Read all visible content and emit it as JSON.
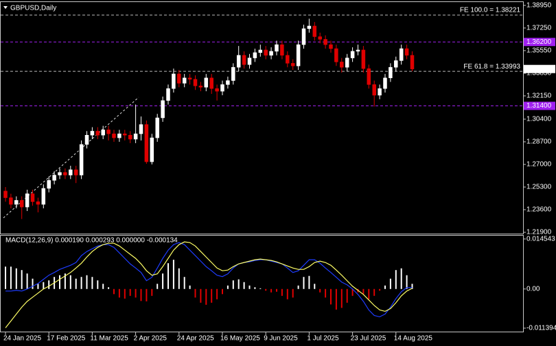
{
  "chart_data": [
    {
      "type": "candlestick",
      "title": "GBPUSD,Daily",
      "categories": [
        "24 Jan 2025",
        null,
        null,
        null,
        null,
        null,
        null,
        null,
        "17 Feb 2025",
        null,
        null,
        null,
        null,
        null,
        null,
        null,
        "11 Mar 2025",
        null,
        null,
        null,
        null,
        null,
        null,
        null,
        "2 Apr 2025",
        null,
        null,
        null,
        null,
        null,
        null,
        null,
        "24 Apr 2025",
        null,
        null,
        null,
        null,
        null,
        null,
        null,
        "16 May 2025",
        null,
        null,
        null,
        null,
        null,
        null,
        null,
        "9 Jun 2025",
        null,
        null,
        null,
        null,
        null,
        null,
        null,
        "1 Jul 2025",
        null,
        null,
        null,
        null,
        null,
        null,
        null,
        "23 Jul 2025",
        null,
        null,
        null,
        null,
        null,
        null,
        null,
        "14 Aug 2025",
        null,
        null,
        null
      ],
      "open": [
        1.25,
        1.245,
        1.24,
        1.243,
        1.238,
        1.248,
        1.242,
        1.24,
        1.252,
        1.258,
        1.262,
        1.264,
        1.262,
        1.266,
        1.262,
        1.285,
        1.292,
        1.295,
        1.292,
        1.296,
        1.293,
        1.29,
        1.293,
        1.292,
        1.289,
        1.293,
        1.3,
        1.272,
        1.29,
        1.305,
        1.318,
        1.327,
        1.338,
        1.331,
        1.335,
        1.334,
        1.329,
        1.328,
        1.335,
        1.327,
        1.325,
        1.33,
        1.333,
        1.343,
        1.352,
        1.345,
        1.35,
        1.354,
        1.356,
        1.352,
        1.355,
        1.36,
        1.352,
        1.346,
        1.344,
        1.36,
        1.372,
        1.374,
        1.366,
        1.364,
        1.36,
        1.357,
        1.347,
        1.343,
        1.35,
        1.355,
        1.356,
        1.342,
        1.33,
        1.322,
        1.327,
        1.335,
        1.343,
        1.348,
        1.357,
        1.352
      ],
      "high": [
        1.253,
        1.248,
        1.246,
        1.246,
        1.251,
        1.251,
        1.245,
        1.255,
        1.261,
        1.265,
        1.267,
        1.267,
        1.269,
        1.269,
        1.288,
        1.295,
        1.298,
        1.298,
        1.299,
        1.299,
        1.296,
        1.296,
        1.296,
        1.295,
        1.315,
        1.306,
        1.303,
        1.293,
        1.308,
        1.321,
        1.33,
        1.342,
        1.341,
        1.338,
        1.338,
        1.337,
        1.332,
        1.338,
        1.338,
        1.33,
        1.333,
        1.336,
        1.346,
        1.359,
        1.355,
        1.353,
        1.357,
        1.36,
        1.359,
        1.358,
        1.363,
        1.363,
        1.355,
        1.349,
        1.363,
        1.375,
        1.3795,
        1.377,
        1.369,
        1.367,
        1.363,
        1.36,
        1.35,
        1.353,
        1.358,
        1.36,
        1.359,
        1.345,
        1.333,
        1.33,
        1.338,
        1.346,
        1.351,
        1.36,
        1.36,
        1.355
      ],
      "low": [
        1.242,
        1.237,
        1.237,
        1.229,
        1.235,
        1.239,
        1.234,
        1.237,
        1.249,
        1.255,
        1.259,
        1.259,
        1.259,
        1.256,
        1.259,
        1.282,
        1.289,
        1.289,
        1.289,
        1.288,
        1.287,
        1.287,
        1.288,
        1.286,
        1.286,
        1.288,
        1.2705,
        1.27,
        1.287,
        1.302,
        1.315,
        1.324,
        1.328,
        1.328,
        1.33,
        1.326,
        1.325,
        1.325,
        1.323,
        1.318,
        1.322,
        1.327,
        1.33,
        1.34,
        1.342,
        1.342,
        1.347,
        1.351,
        1.349,
        1.349,
        1.352,
        1.349,
        1.343,
        1.341,
        1.341,
        1.357,
        1.369,
        1.363,
        1.361,
        1.357,
        1.354,
        1.344,
        1.339,
        1.34,
        1.347,
        1.352,
        1.339,
        1.327,
        1.3135,
        1.319,
        1.324,
        1.332,
        1.34,
        1.345,
        1.349,
        1.34
      ],
      "close": [
        1.245,
        1.24,
        1.243,
        1.238,
        1.248,
        1.242,
        1.24,
        1.252,
        1.258,
        1.262,
        1.264,
        1.262,
        1.266,
        1.262,
        1.285,
        1.292,
        1.295,
        1.292,
        1.296,
        1.293,
        1.29,
        1.293,
        1.292,
        1.289,
        1.293,
        1.3,
        1.272,
        1.29,
        1.305,
        1.318,
        1.327,
        1.338,
        1.331,
        1.335,
        1.334,
        1.329,
        1.328,
        1.335,
        1.327,
        1.325,
        1.33,
        1.333,
        1.343,
        1.352,
        1.345,
        1.35,
        1.354,
        1.356,
        1.352,
        1.355,
        1.36,
        1.352,
        1.346,
        1.344,
        1.36,
        1.372,
        1.374,
        1.366,
        1.364,
        1.36,
        1.357,
        1.347,
        1.343,
        1.35,
        1.355,
        1.356,
        1.342,
        1.33,
        1.322,
        1.327,
        1.335,
        1.343,
        1.348,
        1.357,
        1.352,
        1.3417
      ],
      "up_color": "#ffffff",
      "down_color": "#e00000",
      "ylim": [
        1.218,
        1.392
      ],
      "yticks": [
        {
          "value": 1.3895,
          "label": "1.38950"
        },
        {
          "value": 1.3725,
          "label": "1.37250"
        },
        {
          "value": 1.3555,
          "label": "1.35550"
        },
        {
          "value": 1.3385,
          "label": "1.33850"
        },
        {
          "value": 1.3215,
          "label": "1.32150"
        },
        {
          "value": 1.304,
          "label": "1.30400"
        },
        {
          "value": 1.287,
          "label": "1.28700"
        },
        {
          "value": 1.27,
          "label": "1.27000"
        },
        {
          "value": 1.253,
          "label": "1.25300"
        },
        {
          "value": 1.236,
          "label": "1.23600"
        },
        {
          "value": 1.219,
          "label": "1.21900"
        }
      ],
      "fe_levels": [
        {
          "label": "FE 100.0 = 1.38221",
          "value": 1.38221
        },
        {
          "label": "FE 61.8 = 1.33993",
          "value": 1.33993
        }
      ],
      "price_lines": [
        {
          "value": 1.362,
          "label": "1.36200",
          "color": "#a020f0"
        },
        {
          "value": 1.314,
          "label": "1.31400",
          "color": "#a020f0"
        }
      ],
      "current_price": {
        "value": 1.3417,
        "label": "1.34170"
      }
    },
    {
      "type": "macd",
      "title": "MACD(12,26,9) 0.000190 0.000293 0.000000 -0.000134",
      "histogram": [
        0.0065,
        0.0065,
        0.006,
        0.0055,
        0.0045,
        0.003,
        0.0015,
        0.002,
        0.0025,
        0.0035,
        0.004,
        0.0045,
        0.004,
        0.003,
        0.0035,
        0.004,
        0.0035,
        0.0025,
        0.0015,
        0.0005,
        -0.0015,
        -0.0025,
        -0.0028,
        -0.002,
        -0.0025,
        -0.0035,
        -0.0036,
        -0.002,
        0.0015,
        0.0045,
        0.0075,
        0.0085,
        0.006,
        0.0035,
        0.001,
        -0.0025,
        -0.004,
        -0.0046,
        -0.004,
        -0.003,
        -0.0015,
        0.001,
        0.0025,
        0.0028,
        0.002,
        0.001,
        0.0005,
        0.0002,
        -0.0005,
        -0.001,
        -0.0008,
        -0.002,
        -0.003,
        -0.0025,
        0.001,
        0.0035,
        0.0038,
        0.0015,
        -0.001,
        -0.0025,
        -0.0045,
        -0.006,
        -0.0055,
        -0.004,
        -0.002,
        -0.001,
        -0.0015,
        -0.003,
        -0.002,
        -0.0005,
        0.001,
        0.003,
        0.0055,
        0.006,
        0.004,
        0.0015
      ],
      "histogram_up_color": "#ffffff",
      "histogram_down_color": "#e00000",
      "series": [
        {
          "color": "#1e3cff",
          "values": [
            -0.0006,
            -0.0006,
            -0.0004,
            -0.0006,
            0,
            0.0008,
            0.0016,
            0.0028,
            0.004,
            0.0048,
            0.0057,
            0.0063,
            0.0069,
            0.0077,
            0.0097,
            0.0109,
            0.0117,
            0.0125,
            0.0129,
            0.0129,
            0.0121,
            0.0105,
            0.0089,
            0.0073,
            0.0061,
            0.0048,
            0.0024,
            0.0034,
            0.0061,
            0.0089,
            0.0113,
            0.0129,
            0.0135,
            0.0129,
            0.0113,
            0.0097,
            0.0081,
            0.0065,
            0.0053,
            0.004,
            0.0036,
            0.0044,
            0.0061,
            0.0073,
            0.0077,
            0.0079,
            0.0083,
            0.0085,
            0.0085,
            0.0081,
            0.0077,
            0.0073,
            0.0061,
            0.0048,
            0.0053,
            0.0069,
            0.0085,
            0.0085,
            0.0075,
            0.0061,
            0.0048,
            0.0034,
            0.002,
            0.0012,
            0,
            -0.0016,
            -0.0036,
            -0.0061,
            -0.0077,
            -0.0081,
            -0.0073,
            -0.0053,
            -0.0028,
            -0.0008,
            0.0004,
            0.0004
          ]
        },
        {
          "color": "#ffff66",
          "values": [
            -0.0113,
            -0.0093,
            -0.0073,
            -0.0053,
            -0.0036,
            -0.0024,
            -0.0012,
            0,
            0.0008,
            0.0018,
            0.0028,
            0.0038,
            0.0048,
            0.0061,
            0.0075,
            0.0093,
            0.0109,
            0.0121,
            0.0129,
            0.0133,
            0.0133,
            0.0125,
            0.0113,
            0.0101,
            0.0089,
            0.0073,
            0.0053,
            0.004,
            0.0044,
            0.0065,
            0.0089,
            0.0113,
            0.0129,
            0.0137,
            0.0135,
            0.0125,
            0.0109,
            0.0093,
            0.0077,
            0.0061,
            0.0053,
            0.0055,
            0.0065,
            0.0073,
            0.0077,
            0.0081,
            0.0085,
            0.0087,
            0.0085,
            0.0083,
            0.0079,
            0.0073,
            0.0067,
            0.0061,
            0.0057,
            0.0057,
            0.0065,
            0.0077,
            0.0081,
            0.0077,
            0.0069,
            0.0055,
            0.004,
            0.0024,
            0.0008,
            -0.0004,
            -0.0016,
            -0.0032,
            -0.0048,
            -0.0061,
            -0.0065,
            -0.0057,
            -0.004,
            -0.002,
            -0.0006,
            0.0002
          ]
        }
      ],
      "ylim": [
        -0.0124,
        0.0155
      ],
      "yticks": [
        0.014543,
        {
          "value": 0,
          "label": "0.00"
        },
        -0.011394
      ]
    }
  ]
}
